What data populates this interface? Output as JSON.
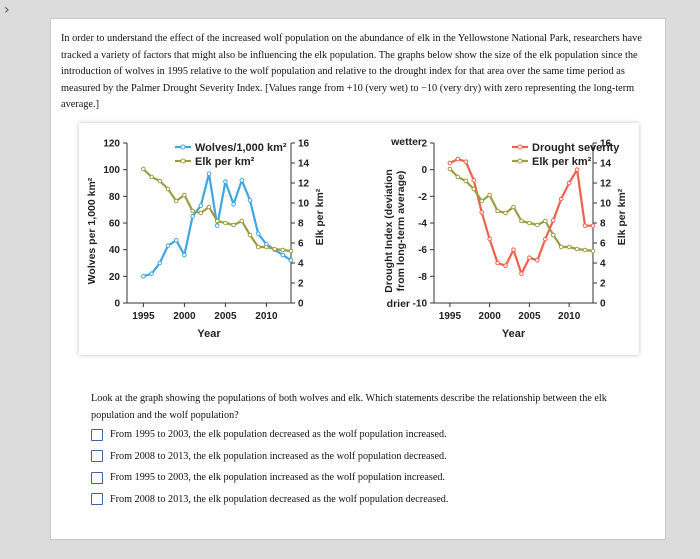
{
  "nav": {
    "back_glyph": "›"
  },
  "intro_text": "In order to understand the effect of the increased wolf population on the abundance of elk in the Yellowstone National Park, researchers have tracked a variety of factors that might also be influencing the elk population. The graphs below show the size of the elk population since the introduction of wolves in 1995 relative to the wolf population and relative to the drought index for that area over the same time period as measured by the Palmer Drought Severity Index. [Values range from +10 (very wet) to −10 (very dry) with zero representing the long-term average.]",
  "question": "Look at the graph showing the populations of both wolves and elk. Which statements describe the relationship between the elk population and the wolf population?",
  "options": [
    {
      "label": "From 1995 to 2003, the elk population decreased as the wolf population increased."
    },
    {
      "label": "From 2008 to 2013, the elk population increased as the wolf population decreased."
    },
    {
      "label": "From 1995 to 2003, the elk population increased as the wolf population increased."
    },
    {
      "label": "From 2008 to 2013, the elk population decreased as the wolf population decreased."
    }
  ],
  "colors": {
    "wolves": "#3ea6e2",
    "elk": "#9d9d42",
    "drought": "#f2604c"
  },
  "chart_data": [
    {
      "type": "line",
      "xlabel": "Year",
      "ylabel": "Wolves per 1,000 km²",
      "y2label": "Elk per km²",
      "xlim": [
        1993,
        2013
      ],
      "ylim": [
        0,
        120
      ],
      "y2lim": [
        0,
        16
      ],
      "xticks": [
        1995,
        2000,
        2005,
        2010
      ],
      "yticks": [
        0,
        20,
        40,
        60,
        80,
        100,
        120
      ],
      "y2ticks": [
        0,
        2,
        4,
        6,
        8,
        10,
        12,
        14,
        16
      ],
      "legend": "top",
      "x": [
        1995,
        1996,
        1997,
        1998,
        1999,
        2000,
        2001,
        2002,
        2003,
        2004,
        2005,
        2006,
        2007,
        2008,
        2009,
        2010,
        2011,
        2012,
        2013
      ],
      "series": [
        {
          "name": "Wolves/1,000 km²",
          "axis": "left",
          "values": [
            20,
            22,
            30,
            43,
            47,
            36,
            65,
            73,
            97,
            58,
            91,
            74,
            92,
            77,
            52,
            44,
            40,
            36,
            32
          ]
        },
        {
          "name": "Elk per km²",
          "axis": "right",
          "values": [
            13.4,
            12.6,
            12.2,
            11.4,
            10.2,
            10.8,
            9.2,
            9.0,
            9.6,
            8.2,
            8.0,
            7.8,
            8.2,
            6.8,
            5.6,
            5.6,
            5.4,
            5.3,
            5.2
          ]
        }
      ]
    },
    {
      "type": "line",
      "xlabel": "Year",
      "ylabel": "Drought Index (deviation from long-term average)",
      "y2label": "Elk per km²",
      "xlim": [
        1993,
        2013
      ],
      "ylim": [
        -10,
        2
      ],
      "y2lim": [
        0,
        16
      ],
      "xticks": [
        1995,
        2000,
        2005,
        2010
      ],
      "yticks": [
        -10,
        -8,
        -6,
        -4,
        -2,
        0,
        2
      ],
      "y2ticks": [
        0,
        2,
        4,
        6,
        8,
        10,
        12,
        14,
        16
      ],
      "ytop_label": "wetter",
      "ybottom_label": "drier",
      "legend": "top",
      "x": [
        1995,
        1996,
        1997,
        1998,
        1999,
        2000,
        2001,
        2002,
        2003,
        2004,
        2005,
        2006,
        2007,
        2008,
        2009,
        2010,
        2011,
        2012,
        2013
      ],
      "series": [
        {
          "name": "Drought severity",
          "axis": "left",
          "values": [
            0.5,
            0.8,
            0.6,
            -0.8,
            -3.2,
            -5.2,
            -7.0,
            -7.2,
            -6.0,
            -7.8,
            -6.6,
            -6.8,
            -5.2,
            -3.8,
            -2.2,
            -1.0,
            0.0,
            -4.2,
            -4.2
          ]
        },
        {
          "name": "Elk per km²",
          "axis": "right",
          "values": [
            13.4,
            12.6,
            12.2,
            11.4,
            10.2,
            10.8,
            9.2,
            9.0,
            9.6,
            8.2,
            8.0,
            7.8,
            8.2,
            6.8,
            5.6,
            5.6,
            5.4,
            5.3,
            5.2
          ]
        }
      ]
    }
  ]
}
